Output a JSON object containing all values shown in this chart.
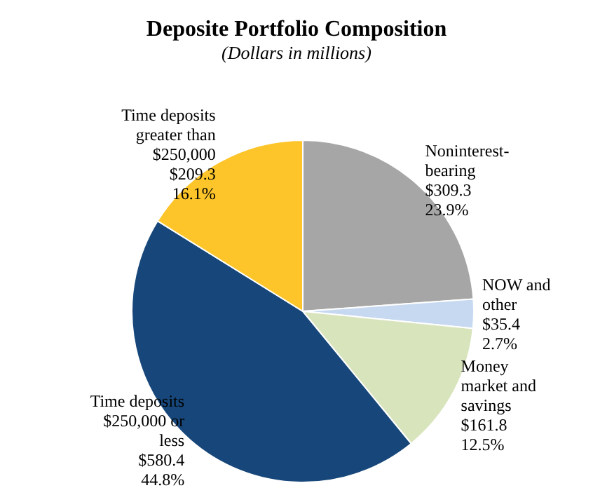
{
  "chart_data": {
    "type": "pie",
    "title": "Deposite Portfolio Composition",
    "subtitle": "(Dollars in millions)",
    "categories": [
      "Noninterest-\nbearing",
      "NOW and\nother",
      "Money\nmarket and\nsavings",
      "Time deposits\n$250,000 or\nless",
      "Time deposits\ngreater than\n$250,000"
    ],
    "values": [
      309.3,
      35.4,
      161.8,
      580.4,
      209.3
    ],
    "value_labels": [
      "$309.3\n23.9%",
      "$35.4\n2.7%",
      "$161.8\n12.5%",
      "$580.4\n44.8%",
      "$209.3\n16.1%"
    ],
    "colors": [
      "#a6a6a6",
      "#c6d9f1",
      "#d8e4bc",
      "#17477a",
      "#fdc52a"
    ],
    "legend": false
  }
}
